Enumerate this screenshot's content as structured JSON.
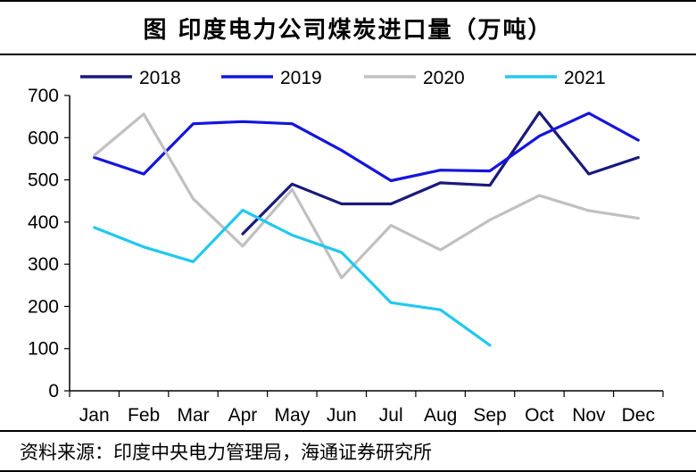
{
  "title": "图 印度电力公司煤炭进口量（万吨）",
  "source": "资料来源：印度中央电力管理局，海通证券研究所",
  "chart_data": {
    "type": "line",
    "title": "图 印度电力公司煤炭进口量（万吨）",
    "xlabel": "",
    "ylabel": "",
    "categories": [
      "Jan",
      "Feb",
      "Mar",
      "Apr",
      "May",
      "Jun",
      "Jul",
      "Aug",
      "Sep",
      "Oct",
      "Nov",
      "Dec"
    ],
    "ylim": [
      0,
      700
    ],
    "yticks": [
      "0",
      "100",
      "200",
      "300",
      "400",
      "500",
      "600",
      "700"
    ],
    "grid": false,
    "legend_position": "top",
    "series": [
      {
        "name": "2018",
        "color": "#1a1a7a",
        "values": [
          null,
          null,
          null,
          372,
          490,
          443,
          443,
          493,
          487,
          660,
          514,
          553
        ]
      },
      {
        "name": "2019",
        "color": "#1414e0",
        "values": [
          553,
          514,
          633,
          638,
          633,
          570,
          498,
          523,
          521,
          604,
          658,
          594
        ]
      },
      {
        "name": "2020",
        "color": "#c0c0c0",
        "values": [
          558,
          656,
          455,
          343,
          477,
          268,
          392,
          334,
          405,
          463,
          427,
          409
        ]
      },
      {
        "name": "2021",
        "color": "#22c8f0",
        "values": [
          387,
          341,
          306,
          428,
          369,
          328,
          209,
          192,
          108,
          null,
          null,
          null
        ]
      }
    ]
  }
}
